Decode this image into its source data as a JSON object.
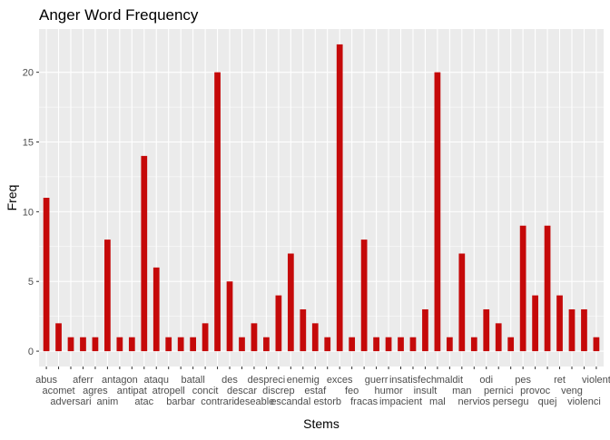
{
  "chart_data": {
    "type": "bar",
    "title": "Anger Word Frequency",
    "xlabel": "Stems",
    "ylabel": "Freq",
    "ylim": [
      -1.1,
      23.1
    ],
    "yticks": [
      0,
      5,
      10,
      15,
      20
    ],
    "grid": true,
    "bar_color": "#C50909",
    "panel_color": "#EBEBEB",
    "categories": [
      "abus",
      "acomet",
      "adversari",
      "aferr",
      "agres",
      "anim",
      "antagon",
      "antipat",
      "atac",
      "ataqu",
      "atropell",
      "barbar",
      "batall",
      "concit",
      "contrari",
      "des",
      "descar",
      "deseable",
      "despreci",
      "discrep",
      "escandal",
      "enemig",
      "estaf",
      "estorb",
      "exces",
      "feo",
      "fracas",
      "guerr",
      "humor",
      "impacient",
      "insatisfech",
      "insult",
      "mal",
      "maldit",
      "man",
      "nervios",
      "odi",
      "pernici",
      "persegu",
      "pes",
      "provoc",
      "quej",
      "ret",
      "veng",
      "violenci",
      "violent"
    ],
    "values": [
      11,
      2,
      1,
      1,
      1,
      8,
      1,
      1,
      14,
      6,
      1,
      1,
      1,
      2,
      20,
      5,
      1,
      2,
      1,
      4,
      7,
      3,
      2,
      1,
      22,
      1,
      8,
      1,
      1,
      1,
      1,
      3,
      20,
      1,
      7,
      1,
      3,
      2,
      1,
      9,
      4,
      9,
      4,
      3,
      3,
      1
    ],
    "tick_labels": [
      "abus",
      "acomet",
      "adversari",
      "aferr",
      "agres",
      "anim",
      "antagon",
      "antipat",
      "atac",
      "ataqu",
      "atropell",
      "barbar",
      "batall",
      "concit",
      "contrari",
      "des",
      "descar",
      "deseable",
      "despreci",
      "discrep",
      "escandal",
      "enemig",
      "estaf",
      "estorb",
      "exces",
      "feo",
      "fracas",
      "guerr",
      "humor",
      "impacient",
      "insatisfech",
      "insult",
      "mal",
      "maldit",
      "man",
      "nervios",
      "odi",
      "pernici",
      "persegu",
      "pes",
      "provoc",
      "quej",
      "ret",
      "veng",
      "violenci",
      "violent"
    ]
  }
}
